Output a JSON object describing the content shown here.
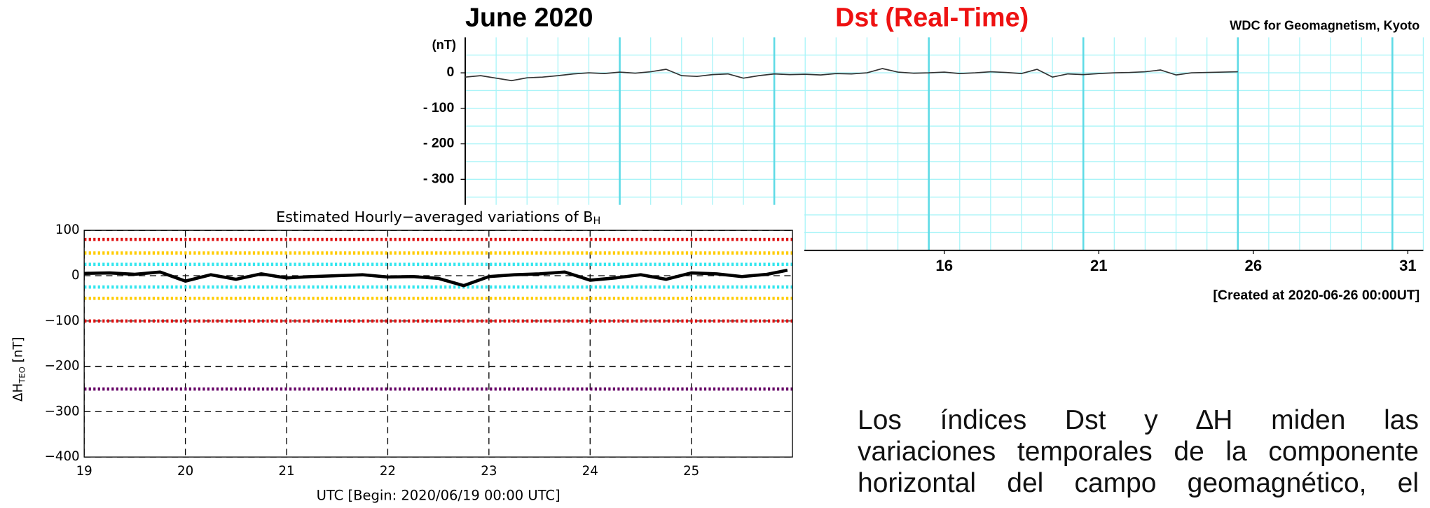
{
  "chart_data": [
    {
      "type": "line",
      "title": "June 2020",
      "subtitle": "Dst (Real-Time)",
      "source": "WDC for Geomagnetism, Kyoto",
      "ylabel": "(nT)",
      "footnote": "[Created at 2020-06-26 00:00UT]",
      "xlim": [
        0,
        31
      ],
      "ylim": [
        -500,
        100
      ],
      "xticks": [
        {
          "value": 15.5,
          "label": "16"
        },
        {
          "value": 20.5,
          "label": "21"
        },
        {
          "value": 25.5,
          "label": "26"
        },
        {
          "value": 30.5,
          "label": "31"
        }
      ],
      "yticks": [
        0,
        {
          "value": -100,
          "label": "- 100"
        },
        {
          "value": -200,
          "label": "- 200"
        },
        {
          "value": -300,
          "label": "- 300"
        }
      ],
      "xgrid": [
        1,
        2,
        3,
        4,
        5,
        6,
        7,
        8,
        9,
        10,
        11,
        12,
        13,
        14,
        15,
        16,
        17,
        18,
        19,
        20,
        21,
        22,
        23,
        24,
        25,
        26,
        27,
        28,
        29,
        30,
        31
      ],
      "xmajor": [
        5,
        10,
        15,
        20,
        25,
        30
      ],
      "ygrid": [
        50,
        0,
        -50,
        -100,
        -150,
        -200,
        -250,
        -300,
        -350,
        -400,
        -450
      ],
      "grid_color": "#a8f4f8",
      "major_color": "#5fdbe6",
      "series": [
        {
          "color": "#333333",
          "x": [
            0,
            0.5,
            1,
            1.5,
            2,
            2.5,
            3,
            3.5,
            4,
            4.5,
            5,
            5.5,
            6,
            6.5,
            7,
            7.5,
            8,
            8.5,
            9,
            9.5,
            10,
            10.5,
            11,
            11.5,
            12,
            12.5,
            13,
            13.5,
            14,
            14.5,
            15,
            15.5,
            16,
            16.5,
            17,
            17.5,
            18,
            18.5,
            19,
            19.5,
            20,
            20.5,
            21,
            21.5,
            22,
            22.5,
            23,
            23.5,
            24,
            24.5,
            25
          ],
          "values": [
            -12,
            -8,
            -15,
            -22,
            -14,
            -12,
            -8,
            -3,
            0,
            -2,
            2,
            -1,
            3,
            10,
            -8,
            -10,
            -5,
            -3,
            -15,
            -8,
            -3,
            -5,
            -4,
            -6,
            -2,
            -3,
            0,
            12,
            2,
            -1,
            0,
            2,
            -2,
            0,
            3,
            1,
            -2,
            10,
            -12,
            -3,
            -5,
            -2,
            0,
            1,
            3,
            8,
            -6,
            0,
            1,
            2,
            3
          ]
        }
      ]
    },
    {
      "type": "line",
      "title": "Estimated Hourly−averaged variations of B",
      "title_subscript": "H",
      "ylabel": "ΔH",
      "ylabel_subscript": "TEO",
      "ylabel_unit": " [nT]",
      "xlabel": "UTC [Begin: 2020/06/19 00:00 UTC]",
      "xlim": [
        19,
        26
      ],
      "ylim": [
        -400,
        100
      ],
      "xticks": [
        19,
        20,
        21,
        22,
        23,
        24,
        25
      ],
      "yticks": [
        100,
        0,
        {
          "value": -100,
          "label": "−100"
        },
        {
          "value": -200,
          "label": "−200"
        },
        {
          "value": -300,
          "label": "−300"
        },
        {
          "value": -400,
          "label": "−400"
        }
      ],
      "grid": true,
      "levels": [
        {
          "value": 80,
          "color": "#e01010"
        },
        {
          "value": 50,
          "color": "#ffcc00"
        },
        {
          "value": 25,
          "color": "#33e6ee"
        },
        {
          "value": -25,
          "color": "#33e6ee"
        },
        {
          "value": -50,
          "color": "#ffcc00"
        },
        {
          "value": -100,
          "color": "#e01010"
        },
        {
          "value": -250,
          "color": "#660066"
        }
      ],
      "series": [
        {
          "color": "#000000",
          "x": [
            19,
            19.25,
            19.5,
            19.75,
            20,
            20.25,
            20.5,
            20.75,
            21,
            21.25,
            21.5,
            21.75,
            22,
            22.25,
            22.5,
            22.75,
            23,
            23.25,
            23.5,
            23.75,
            24,
            24.25,
            24.5,
            24.75,
            25,
            25.25,
            25.5,
            25.75,
            25.95
          ],
          "values": [
            5,
            6,
            3,
            8,
            -12,
            2,
            -8,
            4,
            -5,
            -2,
            0,
            2,
            -3,
            -2,
            -6,
            -22,
            -2,
            2,
            4,
            8,
            -10,
            -5,
            2,
            -8,
            6,
            4,
            -2,
            3,
            12
          ]
        }
      ]
    }
  ],
  "text": {
    "lines": [
      "Los índices Dst y ∆H miden las",
      "variaciones temporales de la componente",
      "horizontal del campo geomagnético, el"
    ]
  }
}
